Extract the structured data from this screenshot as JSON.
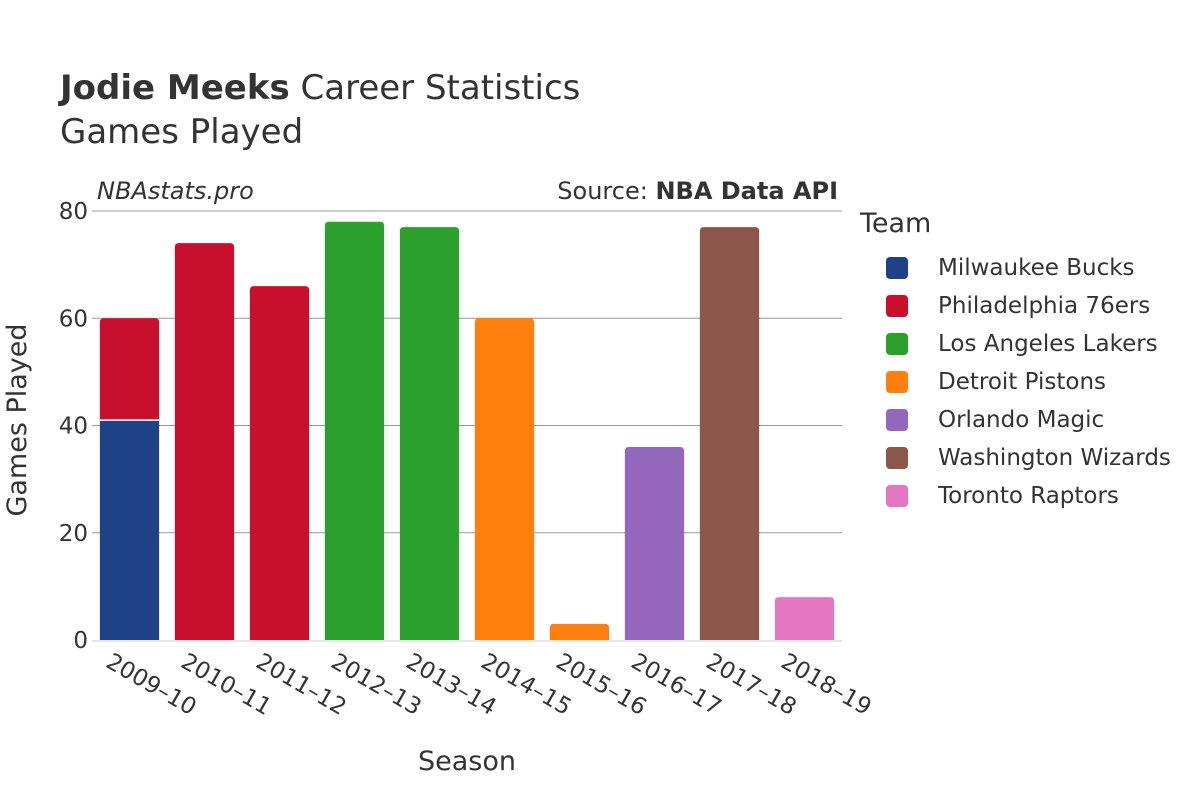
{
  "header": {
    "player_name": "Jodie Meeks",
    "title_suffix": "Career Statistics",
    "subtitle": "Games Played"
  },
  "watermark": "NBAstats.pro",
  "source": {
    "prefix": "Source: ",
    "name": "NBA Data API"
  },
  "chart_data": {
    "type": "bar",
    "stacked": true,
    "title": "Jodie Meeks Career Statistics — Games Played",
    "xlabel": "Season",
    "ylabel": "Games Played",
    "ylim": [
      0,
      80
    ],
    "yticks": [
      0,
      20,
      40,
      60,
      80
    ],
    "grid": true,
    "legend_title": "Team",
    "legend_position": "right",
    "categories": [
      "2009–10",
      "2010–11",
      "2011–12",
      "2012–13",
      "2013–14",
      "2014–15",
      "2015–16",
      "2016–17",
      "2017–18",
      "2018–19"
    ],
    "series": [
      {
        "name": "Milwaukee Bucks",
        "color": "#1f4287",
        "values": [
          41,
          0,
          0,
          0,
          0,
          0,
          0,
          0,
          0,
          0
        ]
      },
      {
        "name": "Philadelphia 76ers",
        "color": "#c8102e",
        "values": [
          19,
          74,
          66,
          0,
          0,
          0,
          0,
          0,
          0,
          0
        ]
      },
      {
        "name": "Los Angeles Lakers",
        "color": "#2ca02c",
        "values": [
          0,
          0,
          0,
          78,
          77,
          0,
          0,
          0,
          0,
          0
        ]
      },
      {
        "name": "Detroit Pistons",
        "color": "#ff7f0e",
        "values": [
          0,
          0,
          0,
          0,
          0,
          60,
          3,
          0,
          0,
          0
        ]
      },
      {
        "name": "Orlando Magic",
        "color": "#9467bd",
        "values": [
          0,
          0,
          0,
          0,
          0,
          0,
          0,
          36,
          0,
          0
        ]
      },
      {
        "name": "Washington Wizards",
        "color": "#8c564b",
        "values": [
          0,
          0,
          0,
          0,
          0,
          0,
          0,
          0,
          77,
          0
        ]
      },
      {
        "name": "Toronto Raptors",
        "color": "#e377c2",
        "values": [
          0,
          0,
          0,
          0,
          0,
          0,
          0,
          0,
          0,
          8
        ]
      }
    ]
  }
}
